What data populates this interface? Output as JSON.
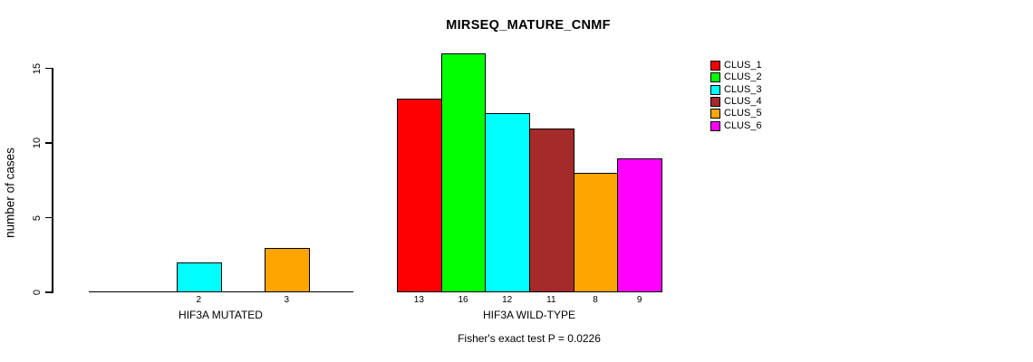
{
  "chart_data": {
    "type": "bar",
    "title": "MIRSEQ_MATURE_CNMF",
    "ylabel": "number of cases",
    "xlabel": "",
    "ylim": [
      0,
      16
    ],
    "yticks": [
      0,
      5,
      10,
      15
    ],
    "grid": false,
    "legend_position": "top-right",
    "clusters": [
      "CLUS_1",
      "CLUS_2",
      "CLUS_3",
      "CLUS_4",
      "CLUS_5",
      "CLUS_6"
    ],
    "colors": [
      "#FF0000",
      "#00FF00",
      "#00FFFF",
      "#A52A2A",
      "#FFA500",
      "#FF00FF"
    ],
    "groups": [
      {
        "label": "HIF3A MUTATED",
        "values": [
          0,
          0,
          2,
          0,
          3,
          0
        ],
        "bar_labels": [
          "",
          "",
          "2",
          "",
          "3",
          ""
        ]
      },
      {
        "label": "HIF3A WILD-TYPE",
        "values": [
          13,
          16,
          12,
          11,
          8,
          9
        ],
        "bar_labels": [
          "13",
          "16",
          "12",
          "11",
          "8",
          "9"
        ]
      }
    ],
    "annotation": "Fisher's exact test P = 0.0226"
  }
}
